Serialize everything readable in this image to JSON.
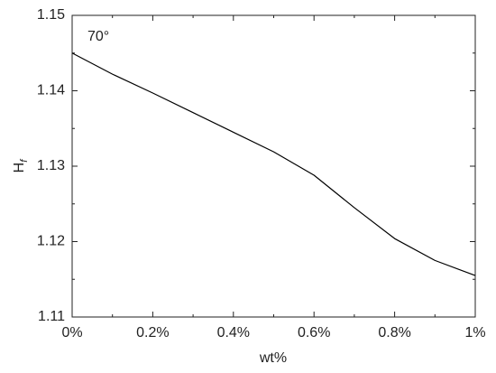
{
  "chart_data": {
    "type": "line",
    "annotation": "70°",
    "xlabel": "wt%",
    "ylabel": "H",
    "ylabel_subscript": "f",
    "x": [
      0,
      0.1,
      0.2,
      0.3,
      0.4,
      0.5,
      0.6,
      0.7,
      0.8,
      0.9,
      1.0
    ],
    "series": [
      {
        "color": "#000000",
        "values": [
          1.145,
          1.1422,
          1.1397,
          1.1371,
          1.1345,
          1.1319,
          1.1288,
          1.1245,
          1.1204,
          1.1175,
          1.1155
        ]
      }
    ],
    "xlim": [
      0,
      1
    ],
    "ylim": [
      1.11,
      1.15
    ],
    "xticks": [
      {
        "value": 0,
        "label": "0%"
      },
      {
        "value": 0.2,
        "label": "0.2%"
      },
      {
        "value": 0.4,
        "label": "0.4%"
      },
      {
        "value": 0.6,
        "label": "0.6%"
      },
      {
        "value": 0.8,
        "label": "0.8%"
      },
      {
        "value": 1,
        "label": "1%"
      }
    ],
    "yticks": [
      1.11,
      1.12,
      1.13,
      1.14,
      1.15
    ],
    "xminorticks": [
      0.1,
      0.3,
      0.5,
      0.7,
      0.9
    ],
    "yminorticks": [
      1.115,
      1.125,
      1.135,
      1.145
    ],
    "grid": false
  }
}
